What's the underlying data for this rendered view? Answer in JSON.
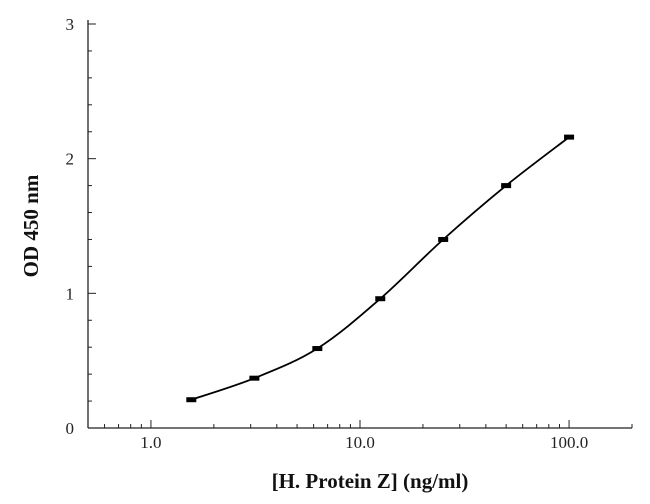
{
  "chart_data": {
    "type": "line",
    "title": "",
    "xlabel": "[H. Protein Z] (ng/ml)",
    "ylabel": "OD 450 nm",
    "xscale": "log",
    "xlim": [
      0.5,
      200
    ],
    "ylim": [
      0,
      3
    ],
    "x_ticks": [
      1.0,
      10.0,
      100.0
    ],
    "x_tick_labels": [
      "1.0",
      "10.0",
      "100.0"
    ],
    "y_ticks": [
      0,
      1,
      2,
      3
    ],
    "y_tick_labels": [
      "0",
      "1",
      "2",
      "3"
    ],
    "grid": false,
    "series": [
      {
        "x": [
          1.56,
          3.125,
          6.25,
          12.5,
          25,
          50,
          100
        ],
        "y": [
          0.21,
          0.37,
          0.59,
          0.96,
          1.4,
          1.8,
          2.16
        ]
      }
    ]
  }
}
